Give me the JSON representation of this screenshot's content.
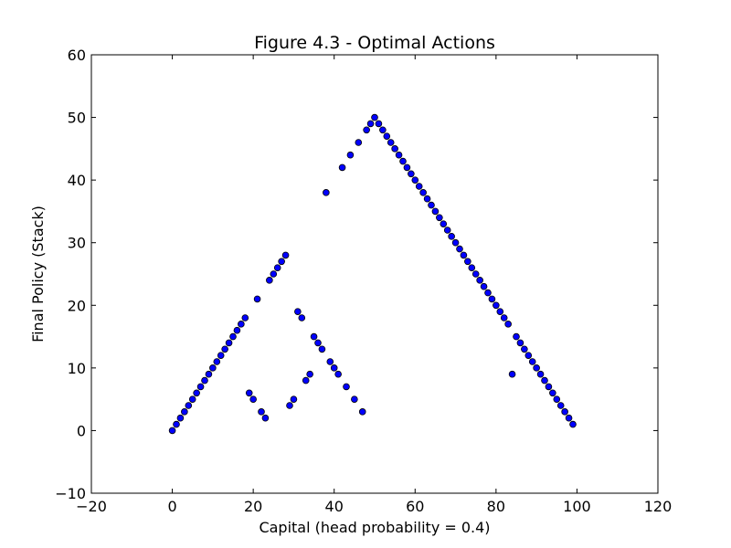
{
  "chart_data": {
    "type": "scatter",
    "title": "Figure 4.3 - Optimal Actions",
    "xlabel": "Capital (head probability = 0.4)",
    "ylabel": "Final Policy (Stack)",
    "xlim": [
      -20,
      120
    ],
    "ylim": [
      -10,
      60
    ],
    "xticks": [
      -20,
      0,
      20,
      40,
      60,
      80,
      100,
      120
    ],
    "yticks": [
      -10,
      0,
      10,
      20,
      30,
      40,
      50,
      60
    ],
    "xtick_labels": [
      "−20",
      "0",
      "20",
      "40",
      "60",
      "80",
      "100",
      "120"
    ],
    "ytick_labels": [
      "−10",
      "0",
      "10",
      "20",
      "30",
      "40",
      "50",
      "60"
    ],
    "grid": false,
    "marker_color": "#0000ff",
    "points": [
      [
        0,
        0
      ],
      [
        1,
        1
      ],
      [
        2,
        2
      ],
      [
        3,
        3
      ],
      [
        4,
        4
      ],
      [
        5,
        5
      ],
      [
        6,
        6
      ],
      [
        7,
        7
      ],
      [
        8,
        8
      ],
      [
        9,
        9
      ],
      [
        10,
        10
      ],
      [
        11,
        11
      ],
      [
        12,
        12
      ],
      [
        13,
        13
      ],
      [
        14,
        14
      ],
      [
        15,
        15
      ],
      [
        16,
        16
      ],
      [
        17,
        17
      ],
      [
        18,
        18
      ],
      [
        19,
        6
      ],
      [
        20,
        5
      ],
      [
        21,
        21
      ],
      [
        22,
        3
      ],
      [
        23,
        2
      ],
      [
        24,
        24
      ],
      [
        25,
        25
      ],
      [
        26,
        26
      ],
      [
        27,
        27
      ],
      [
        28,
        28
      ],
      [
        29,
        4
      ],
      [
        30,
        5
      ],
      [
        31,
        19
      ],
      [
        32,
        18
      ],
      [
        33,
        8
      ],
      [
        34,
        9
      ],
      [
        35,
        15
      ],
      [
        36,
        14
      ],
      [
        37,
        13
      ],
      [
        38,
        38
      ],
      [
        39,
        11
      ],
      [
        40,
        10
      ],
      [
        41,
        9
      ],
      [
        42,
        42
      ],
      [
        43,
        7
      ],
      [
        44,
        44
      ],
      [
        45,
        5
      ],
      [
        46,
        46
      ],
      [
        47,
        3
      ],
      [
        48,
        48
      ],
      [
        49,
        49
      ],
      [
        50,
        50
      ],
      [
        51,
        49
      ],
      [
        52,
        48
      ],
      [
        53,
        47
      ],
      [
        54,
        46
      ],
      [
        55,
        45
      ],
      [
        56,
        44
      ],
      [
        57,
        43
      ],
      [
        58,
        42
      ],
      [
        59,
        41
      ],
      [
        60,
        40
      ],
      [
        61,
        39
      ],
      [
        62,
        38
      ],
      [
        63,
        37
      ],
      [
        64,
        36
      ],
      [
        65,
        35
      ],
      [
        66,
        34
      ],
      [
        67,
        33
      ],
      [
        68,
        32
      ],
      [
        69,
        31
      ],
      [
        70,
        30
      ],
      [
        71,
        29
      ],
      [
        72,
        28
      ],
      [
        73,
        27
      ],
      [
        74,
        26
      ],
      [
        75,
        25
      ],
      [
        76,
        24
      ],
      [
        77,
        23
      ],
      [
        78,
        22
      ],
      [
        79,
        21
      ],
      [
        80,
        20
      ],
      [
        81,
        19
      ],
      [
        82,
        18
      ],
      [
        83,
        17
      ],
      [
        84,
        9
      ],
      [
        85,
        15
      ],
      [
        86,
        14
      ],
      [
        87,
        13
      ],
      [
        88,
        12
      ],
      [
        89,
        11
      ],
      [
        90,
        10
      ],
      [
        91,
        9
      ],
      [
        92,
        8
      ],
      [
        93,
        7
      ],
      [
        94,
        6
      ],
      [
        95,
        5
      ],
      [
        96,
        4
      ],
      [
        97,
        3
      ],
      [
        98,
        2
      ],
      [
        99,
        1
      ]
    ]
  }
}
